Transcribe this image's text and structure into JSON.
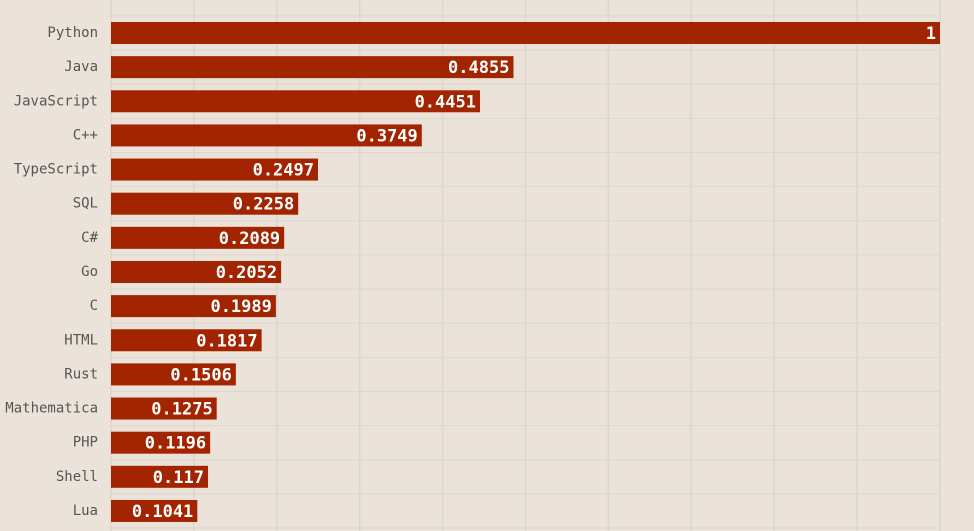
{
  "chart_data": {
    "type": "bar",
    "orientation": "horizontal",
    "categories": [
      "Python",
      "Java",
      "JavaScript",
      "C++",
      "TypeScript",
      "SQL",
      "C#",
      "Go",
      "C",
      "HTML",
      "Rust",
      "Mathematica",
      "PHP",
      "Shell",
      "Lua"
    ],
    "values": [
      1,
      0.4855,
      0.4451,
      0.3749,
      0.2497,
      0.2258,
      0.2089,
      0.2052,
      0.1989,
      0.1817,
      0.1506,
      0.1275,
      0.1196,
      0.117,
      0.1041
    ],
    "color": "#a32400",
    "xlim": [
      0,
      1
    ],
    "xticks": [
      0,
      0.1,
      0.2,
      0.3,
      0.4,
      0.5,
      0.6,
      0.7,
      0.8,
      0.9,
      1
    ],
    "grid": true
  }
}
